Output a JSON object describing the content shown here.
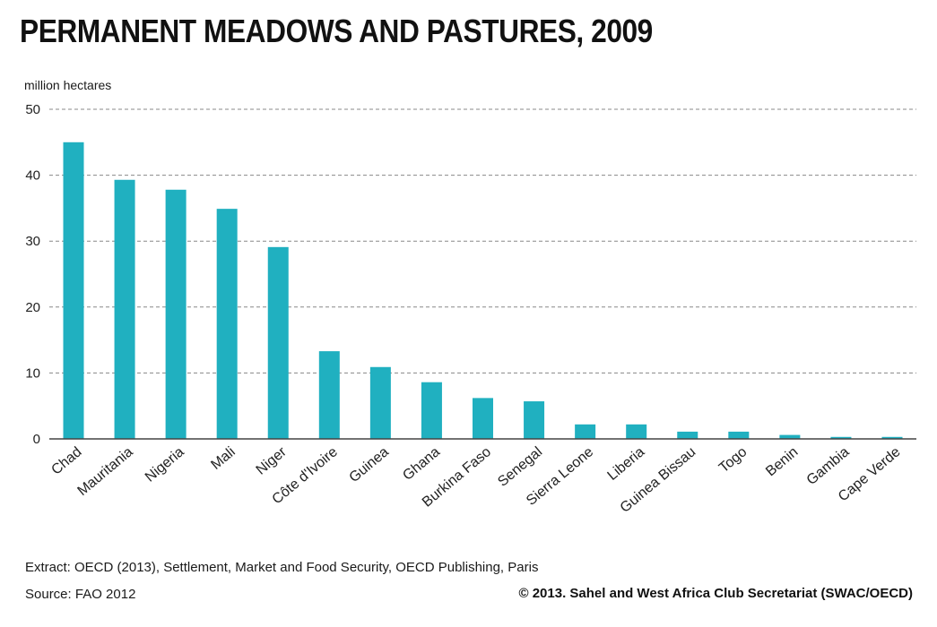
{
  "title": "PERMANENT MEADOWS AND PASTURES, 2009",
  "unit_label": "million hectares",
  "colors": {
    "bar": "#20b0c0",
    "axis": "#444444",
    "grid": "#888888"
  },
  "chart_data": {
    "type": "bar",
    "title": "PERMANENT MEADOWS AND PASTURES, 2009",
    "ylabel": "million hectares",
    "xlabel": "",
    "ylim": [
      0,
      50
    ],
    "yticks": [
      0,
      10,
      20,
      30,
      40,
      50
    ],
    "grid": true,
    "categories": [
      "Chad",
      "Mauritania",
      "Nigeria",
      "Mali",
      "Niger",
      "Côte d'Ivoire",
      "Guinea",
      "Ghana",
      "Burkina Faso",
      "Senegal",
      "Sierra Leone",
      "Liberia",
      "Guinea Bissau",
      "Togo",
      "Benin",
      "Gambia",
      "Cape Verde"
    ],
    "values": [
      45.0,
      39.3,
      37.8,
      34.9,
      29.1,
      13.3,
      10.9,
      8.6,
      6.2,
      5.7,
      2.2,
      2.2,
      1.1,
      1.1,
      0.6,
      0.3,
      0.3
    ]
  },
  "footer": {
    "extract": "Extract: OECD (2013), Settlement, Market and Food Security, OECD Publishing, Paris",
    "source": "Source: FAO 2012",
    "copyright": "© 2013. Sahel and West Africa Club Secretariat (SWAC/OECD)"
  }
}
